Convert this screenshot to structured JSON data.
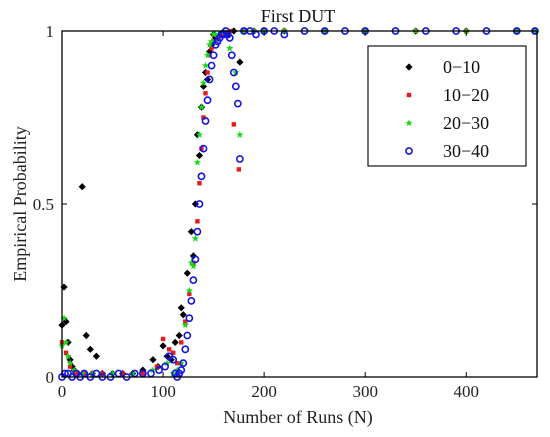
{
  "chart_data": {
    "type": "scatter",
    "title": "First DUT",
    "xlabel": "Number of Runs (N)",
    "ylabel": "Empirical Probability",
    "xlim": [
      0,
      470
    ],
    "ylim": [
      0,
      1
    ],
    "xticks": [
      0,
      100,
      200,
      300,
      400
    ],
    "xtick_labels": [
      "0",
      "100",
      "200",
      "300",
      "400"
    ],
    "yticks": [
      0,
      0.5,
      1
    ],
    "ytick_labels": [
      "0",
      "0.5",
      "1"
    ],
    "grid": false,
    "legend_position": "top-right",
    "series": [
      {
        "name": "0−10",
        "color": "#000000",
        "marker": "diamond",
        "x": [
          0,
          2,
          4,
          6,
          8,
          10,
          12,
          16,
          20,
          24,
          28,
          30,
          34,
          40,
          50,
          60,
          70,
          80,
          90,
          95,
          100,
          104,
          108,
          112,
          116,
          118,
          120,
          124,
          128,
          130,
          132,
          134,
          136,
          138,
          140,
          142,
          144,
          146,
          148,
          150,
          152,
          156,
          160,
          164,
          170,
          176,
          180,
          190,
          200,
          220,
          260,
          300,
          350,
          400,
          450,
          468
        ],
        "y": [
          0.15,
          0.26,
          0.16,
          0.1,
          0.05,
          0.03,
          0.02,
          0.01,
          0.55,
          0.12,
          0.08,
          0.01,
          0.06,
          0.01,
          0.01,
          0.01,
          0.01,
          0.02,
          0.05,
          0.03,
          0.09,
          0.06,
          0.05,
          0.1,
          0.12,
          0.2,
          0.18,
          0.3,
          0.42,
          0.35,
          0.5,
          0.7,
          0.64,
          0.78,
          0.84,
          0.88,
          0.86,
          0.94,
          0.96,
          0.99,
          0.98,
          0.99,
          0.99,
          0.99,
          1.0,
          0.91,
          1.0,
          1.0,
          1.0,
          1.0,
          1.0,
          1.0,
          1.0,
          1.0,
          1.0,
          1.0
        ]
      },
      {
        "name": "10−20",
        "color": "#e41a1c",
        "marker": "square",
        "x": [
          0,
          4,
          8,
          14,
          22,
          30,
          40,
          60,
          80,
          94,
          100,
          106,
          110,
          114,
          118,
          122,
          126,
          130,
          134,
          136,
          138,
          140,
          142,
          144,
          146,
          148,
          150,
          154,
          158,
          162,
          166,
          170,
          175,
          180,
          190,
          200,
          220,
          260,
          300,
          350,
          400,
          450,
          468
        ],
        "y": [
          0.1,
          0.07,
          0.03,
          0.01,
          0.01,
          0.01,
          0.01,
          0.01,
          0.01,
          0.03,
          0.11,
          0.08,
          0.07,
          0.04,
          0.1,
          0.16,
          0.24,
          0.33,
          0.45,
          0.56,
          0.66,
          0.75,
          0.82,
          0.88,
          0.93,
          0.95,
          0.97,
          0.98,
          0.99,
          0.99,
          1.0,
          0.73,
          0.6,
          1.0,
          1.0,
          1.0,
          1.0,
          1.0,
          1.0,
          1.0,
          1.0,
          1.0,
          1.0
        ]
      },
      {
        "name": "20−30",
        "color": "#16d916",
        "marker": "star",
        "x": [
          0,
          2,
          4,
          6,
          8,
          12,
          20,
          30,
          50,
          70,
          90,
          104,
          110,
          114,
          118,
          122,
          126,
          128,
          130,
          132,
          134,
          136,
          138,
          140,
          142,
          144,
          146,
          148,
          150,
          152,
          156,
          160,
          166,
          172,
          176,
          180,
          190,
          200,
          220,
          260,
          300,
          350,
          400,
          450,
          468
        ],
        "y": [
          0.09,
          0.17,
          0.1,
          0.06,
          0.04,
          0.02,
          0.01,
          0.01,
          0.01,
          0.01,
          0.02,
          0.04,
          0.01,
          0.02,
          0.04,
          0.15,
          0.25,
          0.33,
          0.32,
          0.4,
          0.62,
          0.7,
          0.78,
          0.85,
          0.9,
          0.93,
          0.96,
          0.97,
          0.99,
          0.99,
          0.99,
          1.0,
          0.95,
          0.88,
          0.7,
          1.0,
          1.0,
          1.0,
          1.0,
          1.0,
          1.0,
          1.0,
          1.0,
          1.0,
          1.0
        ]
      },
      {
        "name": "30−40",
        "color": "#1414e0",
        "marker": "circle",
        "x": [
          0,
          3,
          6,
          10,
          14,
          18,
          22,
          28,
          34,
          40,
          48,
          56,
          64,
          72,
          80,
          88,
          96,
          102,
          106,
          110,
          112,
          114,
          116,
          118,
          120,
          122,
          124,
          126,
          128,
          130,
          132,
          134,
          136,
          138,
          140,
          142,
          144,
          146,
          148,
          150,
          152,
          154,
          156,
          158,
          160,
          162,
          164,
          166,
          168,
          170,
          172,
          174,
          176,
          180,
          186,
          192,
          200,
          210,
          220,
          240,
          260,
          280,
          300,
          330,
          360,
          390,
          420,
          450,
          468
        ],
        "y": [
          0.0,
          0.01,
          0.01,
          0.0,
          0.01,
          0.0,
          0.01,
          0.0,
          0.01,
          0.0,
          0.0,
          0.01,
          0.0,
          0.01,
          0.01,
          0.01,
          0.02,
          0.03,
          0.06,
          0.05,
          0.01,
          0.0,
          0.01,
          0.02,
          0.04,
          0.08,
          0.12,
          0.17,
          0.22,
          0.28,
          0.34,
          0.42,
          0.5,
          0.58,
          0.66,
          0.74,
          0.8,
          0.86,
          0.9,
          0.93,
          0.96,
          0.97,
          0.98,
          0.99,
          0.99,
          1.0,
          0.99,
          0.98,
          0.93,
          0.88,
          0.84,
          0.79,
          0.63,
          1.0,
          1.0,
          0.99,
          1.0,
          1.0,
          0.99,
          1.0,
          1.0,
          1.0,
          1.0,
          1.0,
          1.0,
          1.0,
          1.0,
          1.0,
          1.0
        ]
      }
    ]
  }
}
